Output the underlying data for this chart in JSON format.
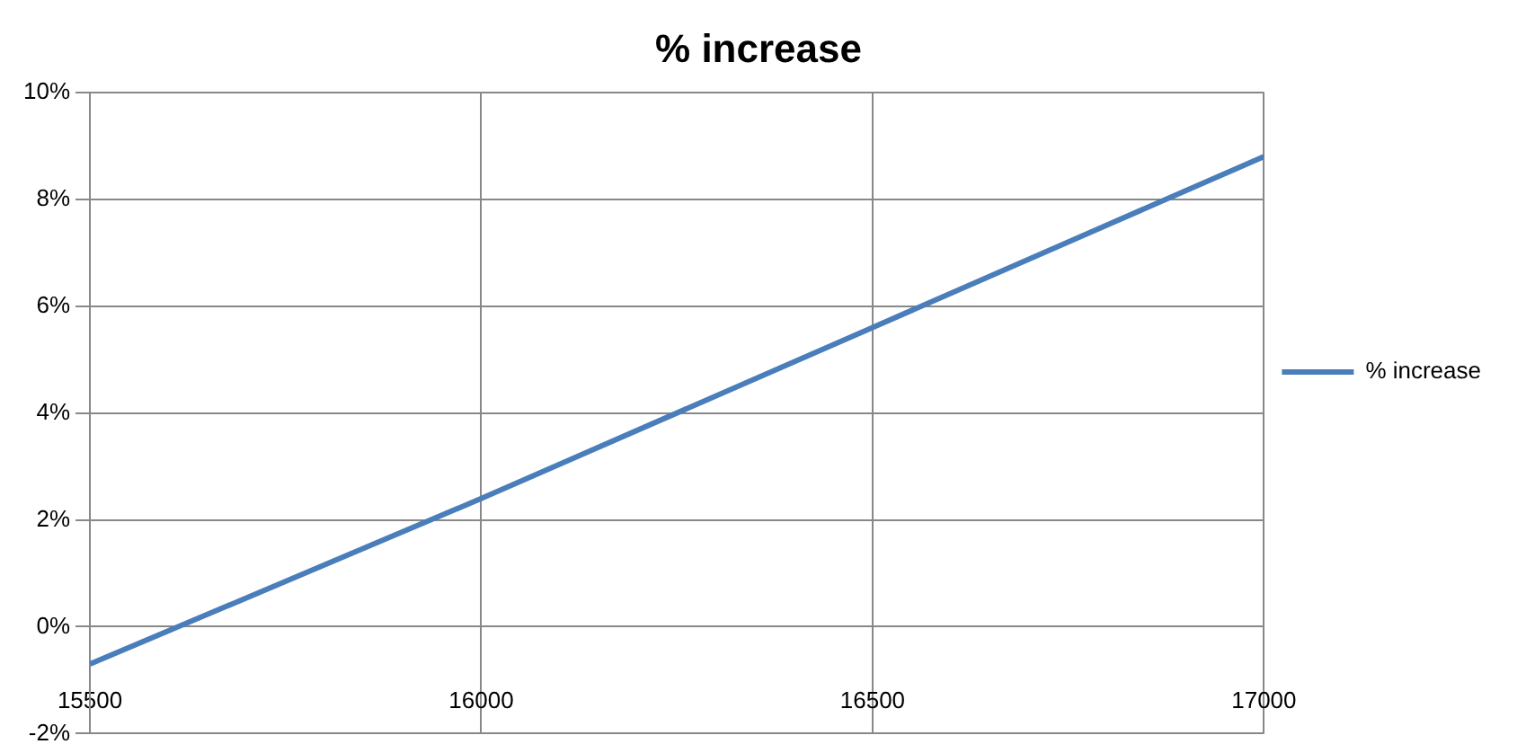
{
  "chart_data": {
    "type": "line",
    "title": "% increase",
    "x": [
      15500,
      16000,
      16500,
      17000
    ],
    "series": [
      {
        "name": "% increase",
        "color": "#4a7ebb",
        "values": [
          -0.7,
          2.4,
          5.6,
          8.8
        ]
      }
    ],
    "xlim": [
      15500,
      17000
    ],
    "xticks": [
      15500,
      16000,
      16500,
      17000
    ],
    "ylim": [
      -2,
      10
    ],
    "yticks": [
      {
        "value": -2,
        "label": "-2%"
      },
      {
        "value": 0,
        "label": "0%"
      },
      {
        "value": 2,
        "label": "2%"
      },
      {
        "value": 4,
        "label": "4%"
      },
      {
        "value": 6,
        "label": "6%"
      },
      {
        "value": 8,
        "label": "8%"
      },
      {
        "value": 10,
        "label": "10%"
      }
    ],
    "grid": true,
    "legend": "right",
    "marker": "none",
    "line_style": "solid"
  }
}
